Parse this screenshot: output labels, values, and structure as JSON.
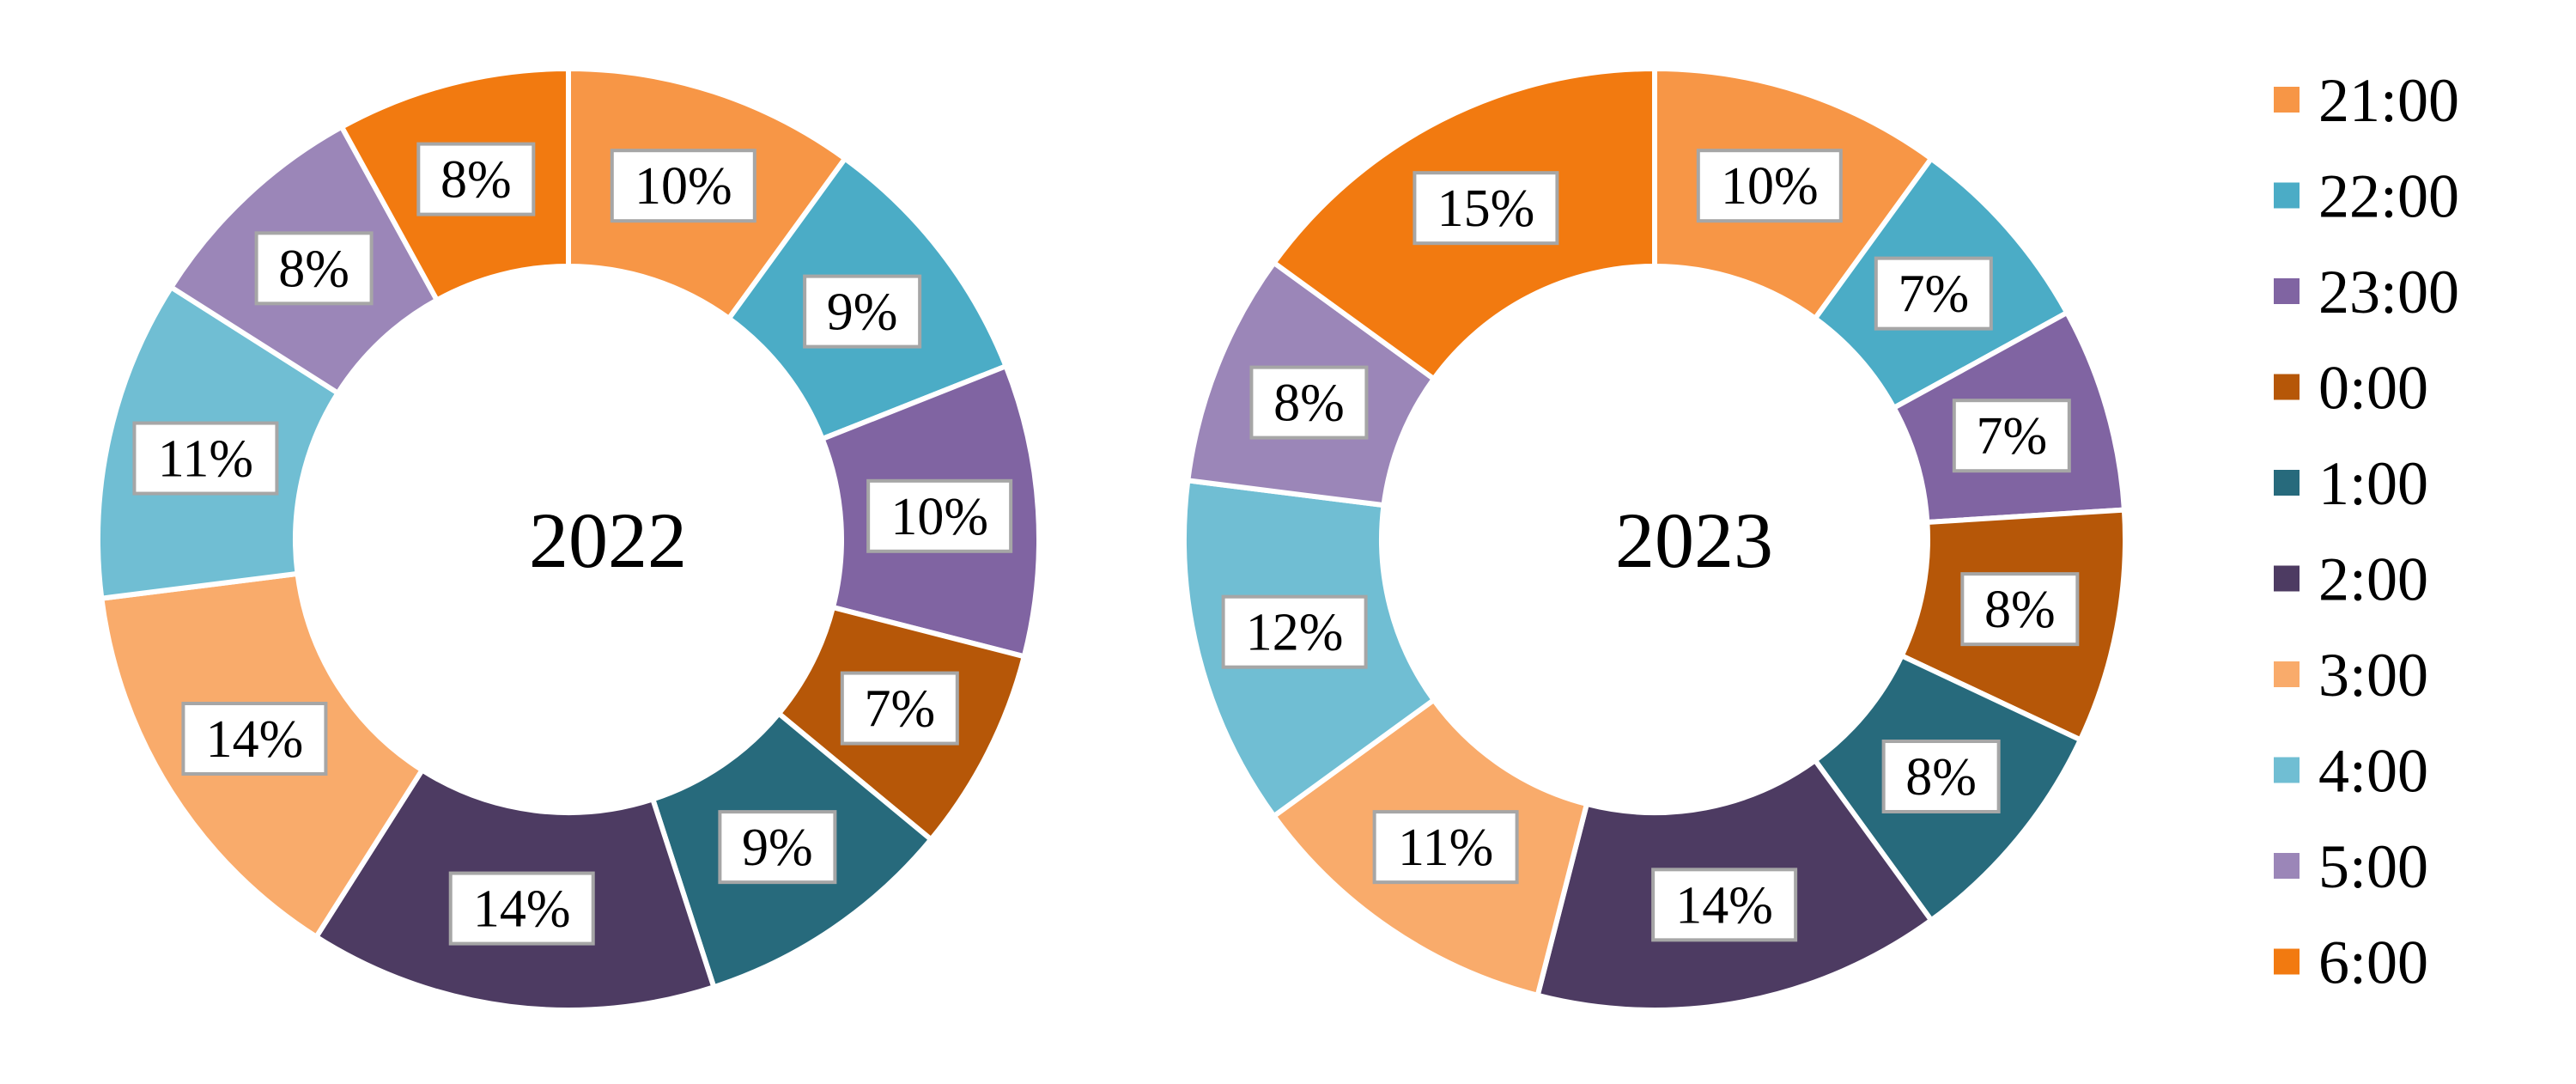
{
  "chart_data": {
    "type": "pie",
    "variant": "donut",
    "categories": [
      "21:00",
      "22:00",
      "23:00",
      "0:00",
      "1:00",
      "2:00",
      "3:00",
      "4:00",
      "5:00",
      "6:00"
    ],
    "colors": [
      "#f79646",
      "#4bacc6",
      "#8064a2",
      "#b65708",
      "#276a7c",
      "#4d3b62",
      "#f9ab6b",
      "#70bed3",
      "#9b86b8",
      "#f27a10"
    ],
    "legend_position": "right",
    "series": [
      {
        "name": "2022",
        "values": [
          10,
          9,
          10,
          7,
          9,
          14,
          14,
          11,
          8,
          8
        ],
        "labels": [
          "10%",
          "9%",
          "10%",
          "7%",
          "9%",
          "14%",
          "14%",
          "11%",
          "8%",
          "8%"
        ]
      },
      {
        "name": "2023",
        "values": [
          10,
          7,
          7,
          8,
          8,
          14,
          11,
          12,
          8,
          15
        ],
        "labels": [
          "10%",
          "7%",
          "7%",
          "8%",
          "8%",
          "14%",
          "11%",
          "12%",
          "8%",
          "15%"
        ]
      }
    ]
  }
}
